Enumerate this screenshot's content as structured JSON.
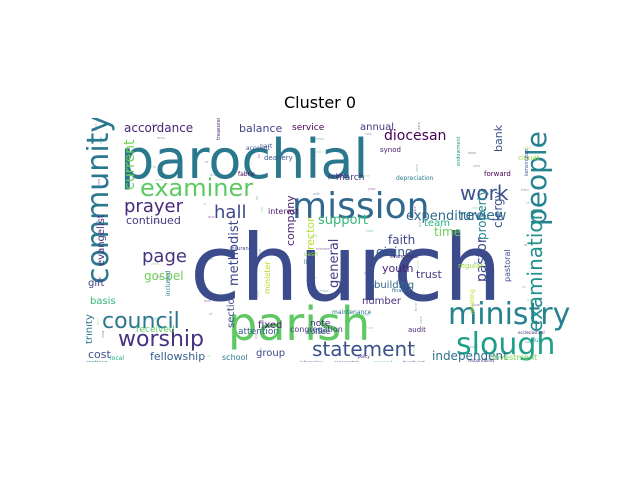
{
  "title": "Cluster 0",
  "words": [
    {
      "text": "church",
      "color": "#3b4b8c"
    },
    {
      "text": "parochial",
      "color": "#2a788e"
    },
    {
      "text": "parish",
      "color": "#5ec962"
    },
    {
      "text": "mission",
      "color": "#31688e"
    },
    {
      "text": "community",
      "color": "#2a788e"
    },
    {
      "text": "ministry",
      "color": "#26828e"
    },
    {
      "text": "slough",
      "color": "#1f9e89"
    },
    {
      "text": "people",
      "color": "#26828e"
    },
    {
      "text": "examiner",
      "color": "#5ec962"
    },
    {
      "text": "council",
      "color": "#2a788e"
    },
    {
      "text": "worship",
      "color": "#46327e"
    },
    {
      "text": "statement",
      "color": "#3b528b"
    },
    {
      "text": "examination",
      "color": "#21918c"
    },
    {
      "text": "work",
      "color": "#3b528b"
    },
    {
      "text": "prayer",
      "color": "#482878"
    },
    {
      "text": "hall",
      "color": "#3e4989"
    },
    {
      "text": "page",
      "color": "#46327e"
    },
    {
      "text": "review",
      "color": "#2c728e"
    },
    {
      "text": "expenditure",
      "color": "#31688e"
    },
    {
      "text": "support",
      "color": "#35b779"
    },
    {
      "text": "diocesan",
      "color": "#440154"
    },
    {
      "text": "current",
      "color": "#6ece58"
    },
    {
      "text": "accordance",
      "color": "#482475"
    },
    {
      "text": "balance",
      "color": "#414487"
    },
    {
      "text": "continued",
      "color": "#443983"
    },
    {
      "text": "gospel",
      "color": "#6ece58"
    },
    {
      "text": "independent",
      "color": "#2c728e"
    },
    {
      "text": "fellowship",
      "color": "#355f8d"
    },
    {
      "text": "giving",
      "color": "#38588c"
    },
    {
      "text": "youth",
      "color": "#482475"
    },
    {
      "text": "faith",
      "color": "#414487"
    },
    {
      "text": "pastor",
      "color": "#3e4989"
    },
    {
      "text": "trust",
      "color": "#443a83"
    },
    {
      "text": "building",
      "color": "#31688e"
    },
    {
      "text": "methodist",
      "color": "#3e4989"
    },
    {
      "text": "general",
      "color": "#433e85"
    },
    {
      "text": "rector",
      "color": "#b5de2b"
    },
    {
      "text": "company",
      "color": "#481f70"
    },
    {
      "text": "property",
      "color": "#25848e"
    },
    {
      "text": "clergy",
      "color": "#3b528b"
    },
    {
      "text": "time",
      "color": "#6ece58"
    },
    {
      "text": "fixed",
      "color": "#481a6c"
    },
    {
      "text": "section",
      "color": "#3e4989"
    },
    {
      "text": "team",
      "color": "#29af7f"
    },
    {
      "text": "cost",
      "color": "#3b528b"
    },
    {
      "text": "basis",
      "color": "#35b779"
    },
    {
      "text": "trinity",
      "color": "#2c728e"
    },
    {
      "text": "evangelist",
      "color": "#46327e"
    },
    {
      "text": "gift",
      "color": "#424086"
    },
    {
      "text": "bank",
      "color": "#3b528b"
    },
    {
      "text": "annual",
      "color": "#453781"
    },
    {
      "text": "number",
      "color": "#472f7d"
    },
    {
      "text": "attention",
      "color": "#355f8d"
    },
    {
      "text": "received",
      "color": "#5ec962"
    },
    {
      "text": "note",
      "color": "#482878"
    },
    {
      "text": "group",
      "color": "#3e4989"
    },
    {
      "text": "service",
      "color": "#440154"
    },
    {
      "text": "interest",
      "color": "#481a6c"
    },
    {
      "text": "march",
      "color": "#453781"
    },
    {
      "text": "congregation",
      "color": "#453781"
    },
    {
      "text": "minister",
      "color": "#b5de2b"
    },
    {
      "text": "investment",
      "color": "#7ad151"
    },
    {
      "text": "school",
      "color": "#2a788e"
    },
    {
      "text": "coffee",
      "color": "#31688e"
    },
    {
      "text": "audit",
      "color": "#482878"
    },
    {
      "text": "pastoral",
      "color": "#3e4989"
    },
    {
      "text": "circuit",
      "color": "#a0da39"
    },
    {
      "text": "regular",
      "color": "#a0da39"
    },
    {
      "text": "forward",
      "color": "#440154"
    },
    {
      "text": "deanery",
      "color": "#38598c"
    },
    {
      "text": "synod",
      "color": "#481a6c"
    },
    {
      "text": "account",
      "color": "#3b528b"
    },
    {
      "text": "fabric",
      "color": "#440154"
    },
    {
      "text": "public",
      "color": "#482475"
    },
    {
      "text": "maintenance",
      "color": "#2c728e"
    },
    {
      "text": "local",
      "color": "#22a884"
    },
    {
      "text": "continue",
      "color": "#26828e"
    },
    {
      "text": "club",
      "color": "#20a386"
    },
    {
      "text": "insurance",
      "color": "#3e4989"
    },
    {
      "text": "evangelical",
      "color": "#472c7a"
    },
    {
      "text": "part",
      "color": "#3b528b"
    },
    {
      "text": "life",
      "color": "#38598c"
    },
    {
      "text": "cash",
      "color": "#8fd744"
    },
    {
      "text": "finance",
      "color": "#2c728e"
    },
    {
      "text": "included",
      "color": "#2a788e"
    },
    {
      "text": "meeting",
      "color": "#bddf26"
    },
    {
      "text": "policy",
      "color": "#482173"
    },
    {
      "text": "depreciation",
      "color": "#287d8e"
    },
    {
      "text": "treasurer",
      "color": "#48186a"
    },
    {
      "text": "kensington",
      "color": "#3b528b"
    },
    {
      "text": "endowment",
      "color": "#1f9a8a"
    },
    {
      "text": "responsibility",
      "color": "#46327e"
    },
    {
      "text": "churchyard",
      "color": "#481c6e"
    },
    {
      "text": "information",
      "color": "#3b528b"
    },
    {
      "text": "consecrated",
      "color": "#472a7a"
    },
    {
      "text": "prepared",
      "color": "#35b779"
    },
    {
      "text": "ecclesiastical",
      "color": "#482475"
    }
  ]
}
